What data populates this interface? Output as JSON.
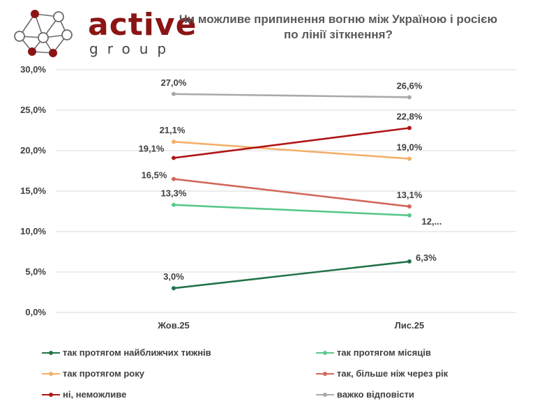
{
  "brand": {
    "name": "active",
    "sub": "group",
    "primary_color": "#8b1515",
    "node_color": "#8b1515",
    "line_color": "#6b6b6b"
  },
  "chart_data": {
    "type": "line",
    "title_lines": [
      "Чи можливе припинення вогню між Україною і росією",
      "по лінії зіткнення?"
    ],
    "categories": [
      "Жов.25",
      "Лис.25"
    ],
    "ylim": [
      0,
      30
    ],
    "yticks": [
      "0,0%",
      "5,0%",
      "10,0%",
      "15,0%",
      "20,0%",
      "25,0%",
      "30,0%"
    ],
    "grid": true,
    "legend_position": "bottom",
    "series": [
      {
        "name": "так протягом найближчих тижнів",
        "values": [
          3.0,
          6.3
        ],
        "labels": [
          "3,0%",
          "6,3%"
        ],
        "color": "#217346"
      },
      {
        "name": "так протягом місяців",
        "values": [
          13.3,
          12.0
        ],
        "labels": [
          "13,3%",
          "12,..."
        ],
        "color": "#5ac88a"
      },
      {
        "name": "так протягом року",
        "values": [
          21.1,
          19.0
        ],
        "labels": [
          "21,1%",
          "19,0%"
        ],
        "color": "#f2b06a"
      },
      {
        "name": "так, більше ніж через рік",
        "values": [
          16.5,
          13.1
        ],
        "labels": [
          "16,5%",
          "13,1%"
        ],
        "color": "#d2675a"
      },
      {
        "name": "ні, неможливе",
        "values": [
          19.1,
          22.8
        ],
        "labels": [
          "19,1%",
          "22,8%"
        ],
        "color": "#b01515"
      },
      {
        "name": "важко відповісти",
        "values": [
          27.0,
          26.6
        ],
        "labels": [
          "27,0%",
          "26,6%"
        ],
        "color": "#a9a9a9"
      }
    ]
  }
}
